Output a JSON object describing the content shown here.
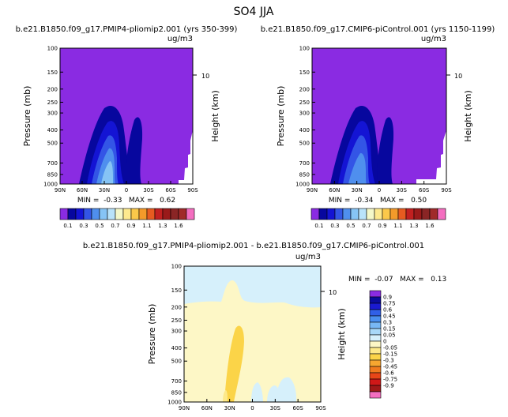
{
  "title": "SO4 JJA",
  "panels": {
    "p1": {
      "title": "b.e21.B1850.f09_g17.PMIP4-pliomip2.001 (yrs 350-399)",
      "units": "ug/m3",
      "ylabel": "Pressure (mb)",
      "ylabel_right": "Height (km)",
      "height_tick": "10",
      "stats": "MIN =  -0.33   MAX =   0.62"
    },
    "p2": {
      "title": "b.e21.B1850.f09_g17.CMIP6-piControl.001 (yrs 1150-1199)",
      "units": "ug/m3",
      "ylabel": "Pressure (mb)",
      "ylabel_right": "Height (km)",
      "height_tick": "10",
      "stats": "MIN =  -0.34   MAX =   0.50"
    },
    "p3": {
      "title": "b.e21.B1850.f09_g17.PMIP4-pliomip2.001 - b.e21.B1850.f09_g17.CMIP6-piControl.001",
      "units": "ug/m3",
      "ylabel": "Pressure (mb)",
      "ylabel_right": "Height (km)",
      "height_tick": "10",
      "stats": "MIN =  -0.07   MAX =   0.13"
    }
  },
  "colorbar_top": {
    "colors": [
      "#8a2be2",
      "#07079e",
      "#1414d4",
      "#3355e6",
      "#4f8fee",
      "#86c4f5",
      "#b9e3fa",
      "#f4f8c9",
      "#fde98e",
      "#fbc84a",
      "#f49a2a",
      "#e75b20",
      "#c22020",
      "#9a1a1a",
      "#8a2525",
      "#a02a2a",
      "#f46ec0"
    ],
    "labels": [
      "0.1",
      "0.3",
      "0.5",
      "0.7",
      "0.9",
      "1.1",
      "1.3",
      "1.6"
    ]
  },
  "colorbar_bottom": {
    "colors": [
      "#8a2be2",
      "#0b0b9c",
      "#1a1ad0",
      "#3060e8",
      "#4a90f0",
      "#78b8f5",
      "#a8d8f8",
      "#d6f0fb",
      "#fdf7c6",
      "#fde98a",
      "#fbd448",
      "#f7a630",
      "#f07a1e",
      "#e84618",
      "#d01818",
      "#a01818",
      "#f46ec0"
    ],
    "labels": [
      "0.9",
      "0.75",
      "0.6",
      "0.45",
      "0.3",
      "0.15",
      "0.05",
      "0",
      "-0.05",
      "-0.15",
      "-0.3",
      "-0.45",
      "-0.6",
      "-0.75",
      "-0.9"
    ]
  },
  "chart_data": [
    {
      "type": "heatmap",
      "title": "b.e21.B1850.f09_g17.PMIP4-pliomip2.001 (yrs 350-399)",
      "units": "ug/m3",
      "xlabel": "",
      "ylabel": "Pressure (mb)",
      "x_ticks": [
        "90N",
        "60N",
        "30N",
        "0",
        "30S",
        "60S",
        "90S"
      ],
      "y_ticks": [
        "100",
        "150",
        "200",
        "250",
        "300",
        "400",
        "500",
        "700",
        "850",
        "1000"
      ],
      "y_range": [
        1000,
        100
      ],
      "min": -0.33,
      "max": 0.62
    },
    {
      "type": "heatmap",
      "title": "b.e21.B1850.f09_g17.CMIP6-piControl.001 (yrs 1150-1199)",
      "units": "ug/m3",
      "xlabel": "",
      "ylabel": "Pressure (mb)",
      "x_ticks": [
        "90N",
        "60N",
        "30N",
        "0",
        "30S",
        "60S",
        "90S"
      ],
      "y_ticks": [
        "100",
        "150",
        "200",
        "250",
        "300",
        "400",
        "500",
        "700",
        "850",
        "1000"
      ],
      "y_range": [
        1000,
        100
      ],
      "min": -0.34,
      "max": 0.5
    },
    {
      "type": "heatmap",
      "title": "b.e21.B1850.f09_g17.PMIP4-pliomip2.001 - b.e21.B1850.f09_g17.CMIP6-piControl.001",
      "units": "ug/m3",
      "xlabel": "",
      "ylabel": "Pressure (mb)",
      "x_ticks": [
        "90N",
        "60N",
        "30N",
        "0",
        "30S",
        "60S",
        "90S"
      ],
      "y_ticks": [
        "100",
        "150",
        "200",
        "250",
        "300",
        "400",
        "500",
        "700",
        "850",
        "1000"
      ],
      "y_range": [
        1000,
        100
      ],
      "min": -0.07,
      "max": 0.13
    }
  ]
}
